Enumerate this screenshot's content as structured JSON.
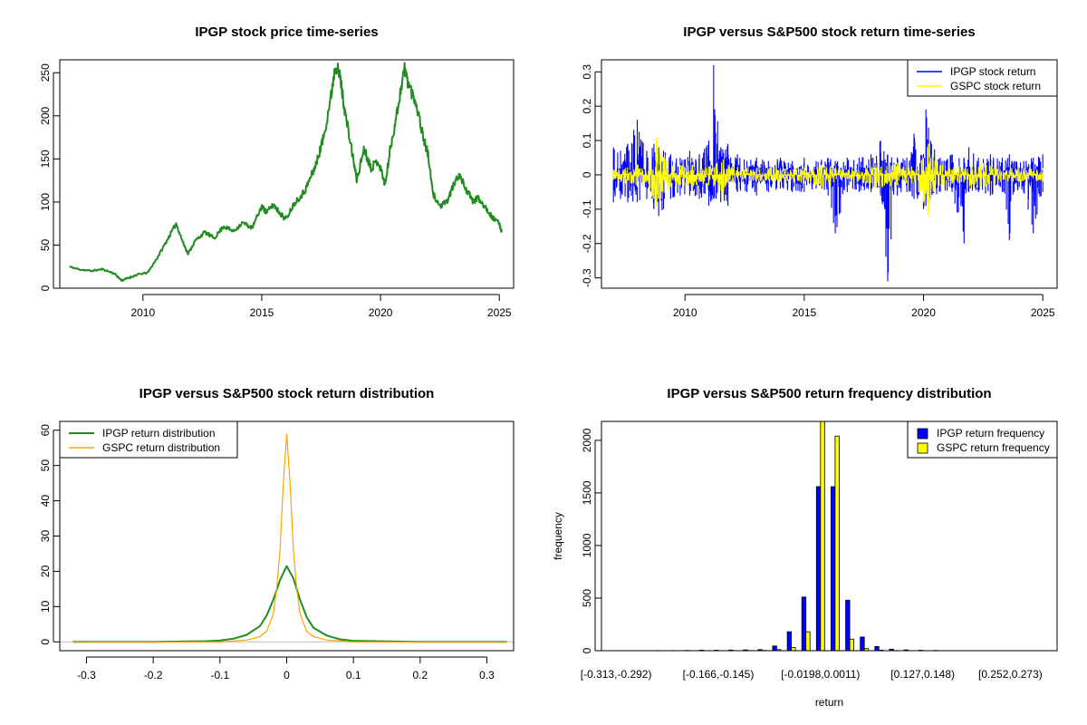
{
  "chart_data": [
    {
      "type": "line",
      "title": "IPGP stock price time-series",
      "xlabel": "",
      "ylabel": "",
      "xlim": [
        2006.5,
        2025.6
      ],
      "ylim": [
        0,
        265
      ],
      "x_ticks": [
        2010,
        2015,
        2020,
        2025
      ],
      "y_ticks": [
        0,
        50,
        100,
        150,
        200,
        250
      ],
      "series": [
        {
          "name": "",
          "color": "#228B22",
          "x": [
            2006.9,
            2007.3,
            2007.8,
            2008.3,
            2008.8,
            2009.1,
            2009.4,
            2009.8,
            2010.2,
            2010.6,
            2011.0,
            2011.4,
            2011.7,
            2011.9,
            2012.2,
            2012.6,
            2013.0,
            2013.4,
            2013.8,
            2014.2,
            2014.6,
            2015.0,
            2015.2,
            2015.5,
            2015.8,
            2016.0,
            2016.4,
            2016.8,
            2017.0,
            2017.3,
            2017.6,
            2017.9,
            2018.1,
            2018.3,
            2018.5,
            2018.8,
            2019.0,
            2019.3,
            2019.6,
            2019.9,
            2020.2,
            2020.4,
            2020.7,
            2021.0,
            2021.2,
            2021.5,
            2021.8,
            2022.0,
            2022.2,
            2022.5,
            2022.8,
            2023.0,
            2023.3,
            2023.6,
            2023.9,
            2024.1,
            2024.4,
            2024.7,
            2025.0,
            2025.1
          ],
          "y": [
            25,
            22,
            20,
            22,
            17,
            9,
            12,
            16,
            18,
            35,
            55,
            75,
            52,
            40,
            55,
            65,
            58,
            72,
            66,
            76,
            70,
            95,
            88,
            97,
            86,
            80,
            100,
            112,
            125,
            145,
            175,
            220,
            260,
            245,
            205,
            158,
            125,
            162,
            140,
            148,
            120,
            160,
            205,
            255,
            235,
            215,
            175,
            155,
            110,
            95,
            100,
            115,
            132,
            115,
            100,
            105,
            95,
            82,
            75,
            65
          ]
        }
      ]
    },
    {
      "type": "line",
      "title": "IPGP versus S&P500 stock return time-series",
      "xlabel": "",
      "ylabel": "",
      "xlim": [
        2006.5,
        2025.6
      ],
      "ylim": [
        -0.33,
        0.335
      ],
      "x_ticks": [
        2010,
        2015,
        2020,
        2025
      ],
      "y_ticks": [
        -0.3,
        -0.2,
        -0.1,
        0.0,
        0.1,
        0.2,
        0.3
      ],
      "legend": {
        "position": "top-right"
      },
      "series": [
        {
          "name": "IPGP stock return",
          "color": "#0000FF",
          "x": [
            2007.0,
            2007.3,
            2007.6,
            2008.0,
            2008.4,
            2008.7,
            2008.9,
            2009.1,
            2009.4,
            2009.8,
            2010.2,
            2010.6,
            2011.0,
            2011.2,
            2011.5,
            2011.8,
            2012.2,
            2012.6,
            2013.0,
            2013.5,
            2014.0,
            2014.5,
            2015.0,
            2015.5,
            2016.0,
            2016.3,
            2016.8,
            2017.3,
            2017.8,
            2018.2,
            2018.5,
            2018.9,
            2019.3,
            2019.6,
            2020.0,
            2020.1,
            2020.3,
            2020.7,
            2021.2,
            2021.7,
            2021.9,
            2022.3,
            2022.8,
            2023.3,
            2023.6,
            2023.8,
            2024.2,
            2024.6,
            2025.0
          ],
          "y_high": [
            0.08,
            0.07,
            0.09,
            0.16,
            0.07,
            0.09,
            0.08,
            0.07,
            0.06,
            0.05,
            0.07,
            0.06,
            0.1,
            0.32,
            0.08,
            0.09,
            0.06,
            0.04,
            0.05,
            0.04,
            0.05,
            0.04,
            0.05,
            0.04,
            0.05,
            0.04,
            0.05,
            0.05,
            0.06,
            0.1,
            0.06,
            0.05,
            0.05,
            0.12,
            0.06,
            0.19,
            0.1,
            0.05,
            0.06,
            0.05,
            0.08,
            0.05,
            0.06,
            0.05,
            0.06,
            0.04,
            0.04,
            0.05,
            0.06
          ],
          "y_low": [
            -0.08,
            -0.07,
            -0.08,
            -0.08,
            -0.07,
            -0.1,
            -0.12,
            -0.1,
            -0.07,
            -0.06,
            -0.06,
            -0.07,
            -0.09,
            -0.07,
            -0.08,
            -0.09,
            -0.05,
            -0.05,
            -0.06,
            -0.05,
            -0.04,
            -0.05,
            -0.05,
            -0.04,
            -0.06,
            -0.17,
            -0.05,
            -0.05,
            -0.05,
            -0.06,
            -0.31,
            -0.06,
            -0.05,
            -0.07,
            -0.1,
            -0.09,
            -0.07,
            -0.05,
            -0.05,
            -0.2,
            -0.05,
            -0.05,
            -0.06,
            -0.05,
            -0.19,
            -0.05,
            -0.05,
            -0.17,
            -0.05
          ]
        },
        {
          "name": "GSPC stock return",
          "color": "#FFFF00",
          "x": [
            2007.0,
            2007.5,
            2008.0,
            2008.5,
            2008.8,
            2009.0,
            2009.3,
            2009.8,
            2010.3,
            2011.0,
            2011.6,
            2012.0,
            2013.0,
            2014.0,
            2015.0,
            2015.7,
            2016.1,
            2017.0,
            2018.0,
            2018.9,
            2019.5,
            2020.0,
            2020.2,
            2020.4,
            2020.8,
            2021.5,
            2022.0,
            2022.5,
            2023.0,
            2024.0,
            2025.0
          ],
          "y_high": [
            0.015,
            0.02,
            0.03,
            0.04,
            0.11,
            0.07,
            0.05,
            0.03,
            0.03,
            0.025,
            0.045,
            0.025,
            0.02,
            0.02,
            0.02,
            0.03,
            0.025,
            0.015,
            0.03,
            0.035,
            0.025,
            0.05,
            0.09,
            0.06,
            0.03,
            0.025,
            0.035,
            0.035,
            0.025,
            0.02,
            0.02
          ],
          "y_low": [
            -0.015,
            -0.025,
            -0.035,
            -0.05,
            -0.09,
            -0.07,
            -0.05,
            -0.03,
            -0.035,
            -0.03,
            -0.06,
            -0.025,
            -0.02,
            -0.02,
            -0.025,
            -0.04,
            -0.03,
            -0.015,
            -0.04,
            -0.03,
            -0.025,
            -0.08,
            -0.12,
            -0.05,
            -0.03,
            -0.025,
            -0.04,
            -0.04,
            -0.025,
            -0.02,
            -0.02
          ]
        }
      ]
    },
    {
      "type": "line",
      "title": "IPGP versus S&P500 stock return distribution",
      "xlabel": "",
      "ylabel": "",
      "xlim": [
        -0.34,
        0.34
      ],
      "ylim": [
        -2.5,
        62.5
      ],
      "x_ticks": [
        -0.3,
        -0.2,
        -0.1,
        0.0,
        0.1,
        0.2,
        0.3
      ],
      "y_ticks": [
        0,
        10,
        20,
        30,
        40,
        50,
        60
      ],
      "legend": {
        "position": "top-left"
      },
      "series": [
        {
          "name": "IPGP return distribution",
          "color": "#228B22",
          "x": [
            -0.32,
            -0.2,
            -0.12,
            -0.1,
            -0.08,
            -0.06,
            -0.04,
            -0.03,
            -0.02,
            -0.01,
            0.0,
            0.01,
            0.02,
            0.03,
            0.04,
            0.06,
            0.08,
            0.1,
            0.2,
            0.33
          ],
          "y": [
            0,
            0,
            0.2,
            0.4,
            0.9,
            2,
            4.5,
            7.5,
            12,
            17.5,
            21.5,
            18,
            12,
            7,
            4,
            1.8,
            0.7,
            0.3,
            0,
            0
          ]
        },
        {
          "name": "GSPC return distribution",
          "color": "#FFA500",
          "x": [
            -0.32,
            -0.2,
            -0.1,
            -0.06,
            -0.04,
            -0.03,
            -0.02,
            -0.015,
            -0.01,
            -0.005,
            0.0,
            0.005,
            0.01,
            0.015,
            0.02,
            0.03,
            0.04,
            0.06,
            0.1,
            0.2,
            0.33
          ],
          "y": [
            0,
            0,
            0,
            0.5,
            1.5,
            3,
            8,
            15,
            26,
            45,
            59,
            45,
            26,
            15,
            8,
            3,
            1.5,
            0.5,
            0,
            0,
            0
          ]
        }
      ]
    },
    {
      "type": "bar",
      "title": "IPGP versus S&P500 return frequency distribution",
      "xlabel": "return",
      "ylabel": "frequency",
      "ylim": [
        0,
        2180
      ],
      "y_ticks": [
        0,
        500,
        1000,
        1500,
        2000
      ],
      "legend": {
        "position": "top-right"
      },
      "shown_category_labels": [
        "[-0.313,-0.292)",
        "[-0.166,-0.145)",
        "[-0.0198,0.0011)",
        "[0.127,0.148)",
        "[0.252,0.273)"
      ],
      "shown_label_bins": [
        0,
        7,
        14,
        21,
        27
      ],
      "series": [
        {
          "name": "IPGP return frequency",
          "color": "#0000FF",
          "values": [
            1,
            0,
            1,
            2,
            2,
            3,
            5,
            4,
            6,
            8,
            10,
            45,
            180,
            510,
            1560,
            1560,
            480,
            130,
            40,
            15,
            8,
            4,
            3,
            1,
            1,
            0,
            0,
            0,
            1,
            0
          ]
        },
        {
          "name": "GSPC return frequency",
          "color": "#FFFF00",
          "values": [
            0,
            0,
            0,
            0,
            0,
            0,
            0,
            0,
            0,
            2,
            3,
            10,
            30,
            180,
            2180,
            2040,
            110,
            20,
            5,
            2,
            1,
            0,
            0,
            0,
            0,
            0,
            0,
            0,
            0,
            0
          ]
        }
      ]
    }
  ]
}
